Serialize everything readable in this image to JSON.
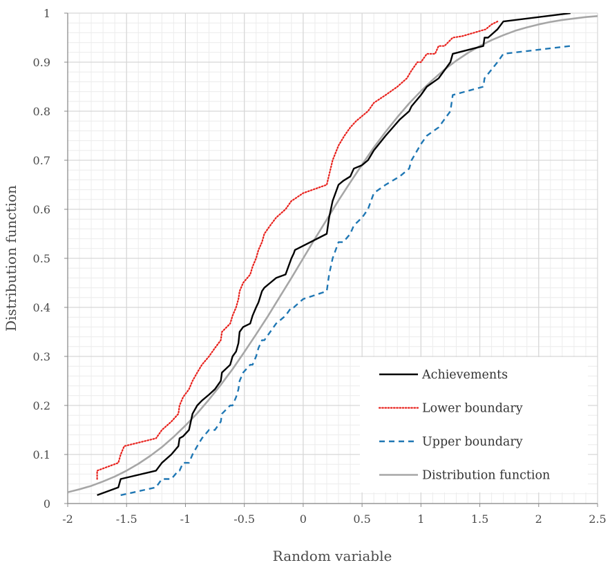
{
  "chart_data": {
    "type": "line",
    "xlabel": "Random variable",
    "ylabel": "Distribution function",
    "xlim": [
      -2,
      2.5
    ],
    "ylim": [
      0,
      1
    ],
    "x_ticks": [
      "-2",
      "-1.5",
      "-1",
      "-0.5",
      "0",
      "0.5",
      "1",
      "1.5",
      "2",
      "2.5"
    ],
    "y_ticks": [
      "0",
      "0.1",
      "0.2",
      "0.3",
      "0.4",
      "0.5",
      "0.6",
      "0.7",
      "0.8",
      "0.9",
      "1"
    ],
    "grid": {
      "major": true,
      "minor": true
    },
    "legend_position": "bottom-right",
    "series": [
      {
        "name": "Achievements",
        "style": "solid",
        "color": "#000000",
        "x": [
          -1.75,
          -1.57,
          -1.55,
          -1.25,
          -1.2,
          -1.12,
          -1.06,
          -1.05,
          -1.02,
          -0.97,
          -0.94,
          -0.9,
          -0.86,
          -0.8,
          -0.75,
          -0.7,
          -0.69,
          -0.62,
          -0.6,
          -0.57,
          -0.55,
          -0.54,
          -0.51,
          -0.45,
          -0.43,
          -0.4,
          -0.38,
          -0.35,
          -0.33,
          -0.28,
          -0.23,
          -0.15,
          -0.1,
          -0.08,
          -0.07,
          0.2,
          0.22,
          0.25,
          0.3,
          0.34,
          0.4,
          0.43,
          0.5,
          0.55,
          0.6,
          0.7,
          0.82,
          0.9,
          0.92,
          1.0,
          1.05,
          1.15,
          1.25,
          1.27,
          1.53,
          1.54,
          1.57,
          1.65,
          1.7,
          2.27
        ],
        "y": [
          0.017,
          0.033,
          0.05,
          0.067,
          0.083,
          0.1,
          0.117,
          0.133,
          0.137,
          0.15,
          0.183,
          0.2,
          0.21,
          0.222,
          0.233,
          0.25,
          0.267,
          0.283,
          0.3,
          0.31,
          0.327,
          0.35,
          0.36,
          0.367,
          0.383,
          0.4,
          0.41,
          0.433,
          0.44,
          0.45,
          0.46,
          0.467,
          0.5,
          0.51,
          0.517,
          0.55,
          0.583,
          0.617,
          0.65,
          0.658,
          0.667,
          0.683,
          0.69,
          0.7,
          0.72,
          0.75,
          0.783,
          0.8,
          0.81,
          0.833,
          0.85,
          0.867,
          0.9,
          0.917,
          0.933,
          0.95,
          0.95,
          0.967,
          0.983,
          1.0
        ]
      },
      {
        "name": "Lower boundary",
        "style": "dotted",
        "color": "#e8211c",
        "x": [
          -1.75,
          -1.75,
          -1.57,
          -1.55,
          -1.52,
          -1.25,
          -1.2,
          -1.12,
          -1.06,
          -1.05,
          -1.02,
          -0.97,
          -0.94,
          -0.9,
          -0.86,
          -0.8,
          -0.75,
          -0.7,
          -0.69,
          -0.62,
          -0.6,
          -0.57,
          -0.55,
          -0.54,
          -0.51,
          -0.45,
          -0.43,
          -0.4,
          -0.38,
          -0.35,
          -0.33,
          -0.28,
          -0.23,
          -0.15,
          -0.1,
          -0.08,
          0.0,
          0.2,
          0.25,
          0.3,
          0.35,
          0.4,
          0.45,
          0.55,
          0.6,
          0.7,
          0.8,
          0.88,
          0.92,
          0.97,
          1.0,
          1.05,
          1.12,
          1.15,
          1.2,
          1.27,
          1.35,
          1.45,
          1.55,
          1.6,
          1.65
        ],
        "y": [
          0.05,
          0.067,
          0.083,
          0.1,
          0.117,
          0.133,
          0.15,
          0.167,
          0.183,
          0.2,
          0.217,
          0.233,
          0.25,
          0.267,
          0.283,
          0.3,
          0.317,
          0.333,
          0.35,
          0.367,
          0.383,
          0.4,
          0.417,
          0.433,
          0.45,
          0.467,
          0.483,
          0.5,
          0.517,
          0.533,
          0.55,
          0.567,
          0.583,
          0.6,
          0.617,
          0.62,
          0.633,
          0.65,
          0.7,
          0.73,
          0.75,
          0.767,
          0.78,
          0.8,
          0.817,
          0.833,
          0.85,
          0.867,
          0.883,
          0.9,
          0.9,
          0.917,
          0.917,
          0.933,
          0.933,
          0.95,
          0.953,
          0.96,
          0.967,
          0.977,
          0.983
        ]
      },
      {
        "name": "Upper boundary",
        "style": "dashed",
        "color": "#1f77b4",
        "x": [
          -1.55,
          -1.25,
          -1.2,
          -1.12,
          -1.06,
          -1.05,
          -1.02,
          -0.97,
          -0.94,
          -0.9,
          -0.86,
          -0.8,
          -0.75,
          -0.7,
          -0.69,
          -0.62,
          -0.6,
          -0.57,
          -0.55,
          -0.54,
          -0.51,
          -0.45,
          -0.43,
          -0.4,
          -0.38,
          -0.35,
          -0.33,
          -0.28,
          -0.23,
          -0.15,
          -0.1,
          -0.08,
          0.0,
          0.2,
          0.22,
          0.25,
          0.3,
          0.34,
          0.4,
          0.43,
          0.5,
          0.55,
          0.6,
          0.7,
          0.82,
          0.9,
          0.92,
          1.0,
          1.05,
          1.15,
          1.25,
          1.27,
          1.53,
          1.54,
          1.65,
          1.7,
          2.27
        ],
        "y": [
          0.017,
          0.033,
          0.05,
          0.05,
          0.067,
          0.067,
          0.083,
          0.083,
          0.1,
          0.117,
          0.133,
          0.15,
          0.15,
          0.167,
          0.183,
          0.2,
          0.2,
          0.217,
          0.233,
          0.25,
          0.267,
          0.283,
          0.283,
          0.3,
          0.317,
          0.333,
          0.333,
          0.35,
          0.367,
          0.383,
          0.4,
          0.4,
          0.417,
          0.433,
          0.467,
          0.5,
          0.533,
          0.533,
          0.55,
          0.567,
          0.583,
          0.6,
          0.633,
          0.65,
          0.667,
          0.683,
          0.7,
          0.733,
          0.75,
          0.767,
          0.8,
          0.833,
          0.85,
          0.867,
          0.9,
          0.917,
          0.933
        ]
      },
      {
        "name": "Distribution function",
        "style": "solid",
        "color": "#a6a6a6",
        "x": [
          -2.0,
          -1.9,
          -1.8,
          -1.7,
          -1.6,
          -1.5,
          -1.4,
          -1.3,
          -1.2,
          -1.1,
          -1.0,
          -0.9,
          -0.8,
          -0.7,
          -0.6,
          -0.5,
          -0.4,
          -0.3,
          -0.2,
          -0.1,
          0.0,
          0.1,
          0.2,
          0.3,
          0.4,
          0.5,
          0.6,
          0.7,
          0.8,
          0.9,
          1.0,
          1.1,
          1.2,
          1.3,
          1.4,
          1.5,
          1.6,
          1.7,
          1.8,
          1.9,
          2.0,
          2.1,
          2.2,
          2.3,
          2.4,
          2.5
        ],
        "y": [
          0.023,
          0.029,
          0.036,
          0.045,
          0.055,
          0.067,
          0.081,
          0.097,
          0.115,
          0.136,
          0.159,
          0.184,
          0.212,
          0.242,
          0.274,
          0.309,
          0.345,
          0.382,
          0.421,
          0.46,
          0.5,
          0.54,
          0.579,
          0.618,
          0.655,
          0.691,
          0.726,
          0.758,
          0.788,
          0.816,
          0.841,
          0.864,
          0.885,
          0.903,
          0.919,
          0.933,
          0.945,
          0.955,
          0.964,
          0.971,
          0.977,
          0.982,
          0.986,
          0.989,
          0.992,
          0.994
        ]
      }
    ]
  }
}
